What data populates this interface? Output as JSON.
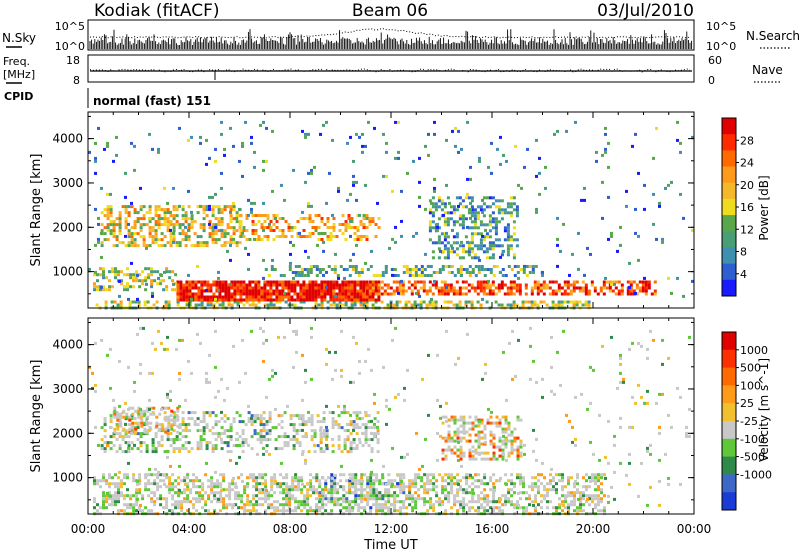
{
  "header": {
    "station": "Kodiak (fitACF)",
    "beam": "Beam 06",
    "date": "03/Jul/2010"
  },
  "params": {
    "nsky_label": "N.Sky",
    "nsearch_label": "N.Search",
    "nsky_ticks": [
      "10^5",
      "10^0"
    ],
    "freq_label_1": "Freq.",
    "freq_label_2": "[MHz]",
    "freq_ticks": [
      "18",
      "8"
    ],
    "nave_label": "Nave",
    "nave_ticks": [
      "60",
      "0"
    ],
    "cpid_label": "CPID",
    "cpid_value": "normal (fast) 151"
  },
  "chart_data": [
    {
      "type": "heatmap",
      "name": "power",
      "ylabel": "Slant Range [km]",
      "xlabel": "Time UT",
      "x_ticks": [
        "00:00",
        "04:00",
        "08:00",
        "12:00",
        "16:00",
        "20:00",
        "00:00"
      ],
      "y_ticks": [
        "1000",
        "2000",
        "3000",
        "4000"
      ],
      "ylim": [
        180,
        4600
      ],
      "xlim_hours": [
        0,
        24
      ],
      "colorbar_label": "Power [dB]",
      "colorbar_ticks": [
        "4",
        "8",
        "12",
        "16",
        "20",
        "24",
        "28"
      ],
      "colorbar_colors": [
        "#1a1aff",
        "#2d5fd0",
        "#3f8fb0",
        "#4a9e75",
        "#58a84b",
        "#f0dc1e",
        "#f5b82a",
        "#ff9a1a",
        "#ff6a00",
        "#ff2a00",
        "#e00000"
      ],
      "regions": [
        {
          "t0": 0.3,
          "t1": 20.0,
          "r0": 200,
          "r1": 350,
          "level": 0.45,
          "density": 0.55
        },
        {
          "t0": 3.5,
          "t1": 11.5,
          "r0": 350,
          "r1": 800,
          "level": 0.95,
          "density": 0.9
        },
        {
          "t0": 11.0,
          "t1": 22.5,
          "r0": 500,
          "r1": 800,
          "level": 0.8,
          "density": 0.6
        },
        {
          "t0": 0.2,
          "t1": 3.5,
          "r0": 600,
          "r1": 1100,
          "level": 0.45,
          "density": 0.45
        },
        {
          "t0": 7.0,
          "t1": 18.0,
          "r0": 900,
          "r1": 1150,
          "level": 0.35,
          "density": 0.4
        },
        {
          "t0": 0.5,
          "t1": 6.0,
          "r0": 1600,
          "r1": 2500,
          "level": 0.55,
          "density": 0.5
        },
        {
          "t0": 6.0,
          "t1": 11.5,
          "r0": 1700,
          "r1": 2300,
          "level": 0.65,
          "density": 0.4
        },
        {
          "t0": 13.5,
          "t1": 17.0,
          "r0": 1300,
          "r1": 2700,
          "level": 0.3,
          "density": 0.4
        },
        {
          "t0": 0.0,
          "t1": 24.0,
          "r0": 350,
          "r1": 4400,
          "level": 0.25,
          "density": 0.03
        }
      ]
    },
    {
      "type": "heatmap",
      "name": "velocity",
      "ylabel": "Slant Range [km]",
      "xlabel": "Time UT",
      "x_ticks": [
        "00:00",
        "04:00",
        "08:00",
        "12:00",
        "16:00",
        "20:00",
        "00:00"
      ],
      "y_ticks": [
        "1000",
        "2000",
        "3000",
        "4000"
      ],
      "ylim": [
        180,
        4600
      ],
      "xlim_hours": [
        0,
        24
      ],
      "colorbar_label": "Velocity [m s^-1]",
      "colorbar_ticks": [
        "1000",
        "500",
        "100",
        "25",
        "-25",
        "-100",
        "-500",
        "-1000"
      ],
      "colorbar_colors": [
        "#1a3cd6",
        "#3d68c8",
        "#2f8a4a",
        "#5ec83a",
        "#c8c8c8",
        "#f0c030",
        "#ff9a1a",
        "#ff6a00",
        "#ff3000",
        "#e00000"
      ],
      "regions": [
        {
          "t0": 0.2,
          "t1": 20.5,
          "r0": 200,
          "r1": 1100,
          "level": 0.45,
          "density": 0.5
        },
        {
          "t0": 0.5,
          "t1": 11.5,
          "r0": 1600,
          "r1": 2500,
          "level": 0.4,
          "density": 0.35
        },
        {
          "t0": 1.0,
          "t1": 3.5,
          "r0": 2000,
          "r1": 2600,
          "level": 0.6,
          "density": 0.4
        },
        {
          "t0": 14.0,
          "t1": 17.2,
          "r0": 1400,
          "r1": 2400,
          "level": 0.65,
          "density": 0.45
        },
        {
          "t0": 9.0,
          "t1": 12.5,
          "r0": 300,
          "r1": 1100,
          "level": 0.25,
          "density": 0.3
        },
        {
          "t0": 0.0,
          "t1": 24.0,
          "r0": 350,
          "r1": 4400,
          "level": 0.42,
          "density": 0.03
        }
      ]
    }
  ]
}
